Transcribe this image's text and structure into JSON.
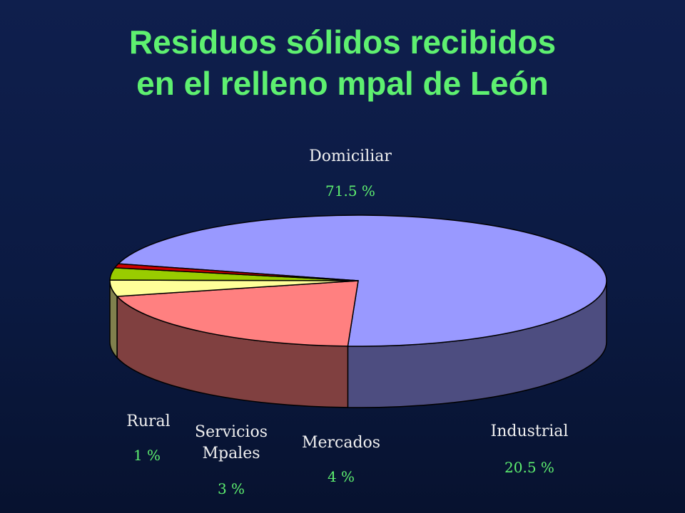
{
  "title_line1": "Residuos sólidos recibidos",
  "title_line2": "en el relleno mpal de León",
  "chart_data": {
    "type": "pie",
    "title": "Residuos sólidos recibidos en el relleno mpal de León",
    "slices": [
      {
        "label": "Domiciliar",
        "label_lines": [
          "Domiciliar"
        ],
        "value": 71.5,
        "value_label": "71.5 %",
        "color": "#9999ff"
      },
      {
        "label": "Industrial",
        "label_lines": [
          "Industrial"
        ],
        "value": 20.5,
        "value_label": "20.5 %",
        "color": "#ff8080"
      },
      {
        "label": "Mercados",
        "label_lines": [
          "Mercados"
        ],
        "value": 4,
        "value_label": "4 %",
        "color": "#ffff99"
      },
      {
        "label": "Servicios Mpales",
        "label_lines": [
          "Servicios",
          "Mpales"
        ],
        "value": 3,
        "value_label": "3 %",
        "color": "#99cc00"
      },
      {
        "label": "Rural",
        "label_lines": [
          "Rural"
        ],
        "value": 1,
        "value_label": "1 %",
        "color": "#cc0000"
      }
    ]
  }
}
